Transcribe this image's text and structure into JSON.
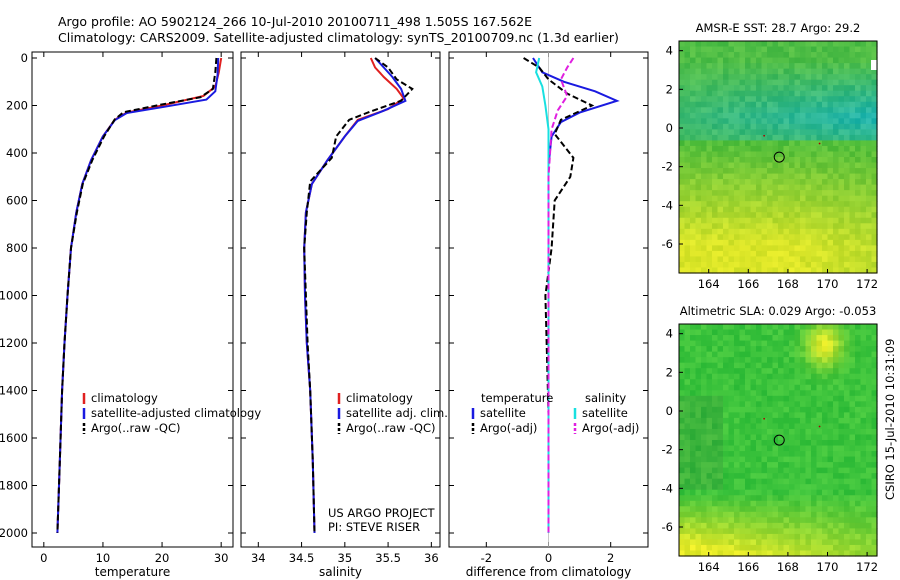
{
  "header": {
    "line1": "Argo profile: AO 5902124_266 10-Jul-2010 20100711_498 1.505S 167.562E",
    "line2": "Climatology: CARS2009. Satellite-adjusted climatology: synTS_20100709.nc (1.3d earlier)"
  },
  "side_label": "CSIRO 15-Jul-2010 10:31:09",
  "colors": {
    "climatology": "#e02020",
    "satellite": "#1a1ae0",
    "argo": "#000000",
    "sat_sal": "#18e0e0",
    "argo_sal": "#e020e0"
  },
  "chart_data": [
    {
      "type": "line",
      "id": "temperature",
      "xlabel": "temperature",
      "xlim": [
        -2,
        32
      ],
      "xticks": [
        "0",
        "10",
        "20",
        "30"
      ],
      "ylim": [
        0,
        2000
      ],
      "yticks": [
        "0",
        "200",
        "400",
        "600",
        "800",
        "1000",
        "1200",
        "1400",
        "1600",
        "1800",
        "2000"
      ],
      "legend": [
        "climatology",
        "satellite-adjusted climatology",
        "Argo(..raw -QC)"
      ],
      "series": [
        {
          "name": "climatology",
          "color": "#e02020",
          "dash": false,
          "x": [
            30.0,
            29.6,
            29.0,
            27.0,
            20.0,
            14.0,
            12.0,
            10.0,
            8.0,
            6.5,
            5.5,
            4.6,
            4.0,
            3.5,
            3.1,
            2.7,
            2.3
          ],
          "y": [
            0,
            60,
            120,
            160,
            200,
            230,
            260,
            330,
            430,
            530,
            650,
            800,
            1000,
            1200,
            1400,
            1700,
            2000
          ]
        },
        {
          "name": "satellite",
          "color": "#1a1ae0",
          "dash": false,
          "x": [
            29.5,
            29.4,
            29.0,
            27.5,
            20.5,
            14.0,
            12.0,
            10.0,
            8.0,
            6.5,
            5.5,
            4.6,
            4.0,
            3.5,
            3.1,
            2.7,
            2.3
          ],
          "y": [
            0,
            70,
            140,
            175,
            205,
            232,
            262,
            330,
            430,
            530,
            650,
            800,
            1000,
            1200,
            1400,
            1700,
            2000
          ]
        },
        {
          "name": "Argo",
          "color": "#000000",
          "dash": true,
          "x": [
            29.2,
            29.0,
            28.6,
            26.5,
            19.5,
            13.5,
            12.0,
            10.2,
            8.2,
            6.6,
            5.6,
            4.6,
            4.0,
            3.5,
            3.1,
            2.7,
            2.3
          ],
          "y": [
            0,
            60,
            130,
            165,
            198,
            228,
            258,
            330,
            430,
            530,
            650,
            800,
            1000,
            1200,
            1400,
            1700,
            2000
          ]
        }
      ]
    },
    {
      "type": "line",
      "id": "salinity",
      "xlabel": "salinity",
      "xlim": [
        33.8,
        36.1
      ],
      "xticks": [
        "34",
        "34.5",
        "35",
        "35.5",
        "36"
      ],
      "ylim": [
        0,
        2000
      ],
      "legend": [
        "climatology",
        "satellite adj. clim.",
        "Argo(..raw -QC)"
      ],
      "note_line1": "US ARGO PROJECT",
      "note_line2": "PI: STEVE RISER",
      "series": [
        {
          "name": "climatology",
          "color": "#e02020",
          "dash": false,
          "x": [
            35.3,
            35.35,
            35.45,
            35.6,
            35.68,
            35.5,
            35.15,
            35.0,
            34.8,
            34.62,
            34.55,
            34.53,
            34.54,
            34.56,
            34.6,
            34.63,
            34.65
          ],
          "y": [
            0,
            40,
            80,
            130,
            170,
            215,
            260,
            330,
            430,
            530,
            650,
            800,
            1000,
            1200,
            1400,
            1700,
            2000
          ]
        },
        {
          "name": "satellite",
          "color": "#1a1ae0",
          "dash": false,
          "x": [
            35.35,
            35.45,
            35.55,
            35.65,
            35.7,
            35.45,
            35.15,
            35.0,
            34.8,
            34.62,
            34.55,
            34.53,
            34.54,
            34.56,
            34.6,
            34.63,
            34.65
          ],
          "y": [
            0,
            40,
            80,
            130,
            180,
            222,
            265,
            330,
            430,
            530,
            650,
            800,
            1000,
            1200,
            1400,
            1700,
            2000
          ]
        },
        {
          "name": "Argo",
          "color": "#000000",
          "dash": true,
          "x": [
            35.35,
            35.5,
            35.6,
            35.78,
            35.65,
            35.3,
            35.05,
            34.9,
            34.85,
            34.6,
            34.56,
            34.53,
            34.55,
            34.57,
            34.6,
            34.63,
            34.65
          ],
          "y": [
            0,
            40,
            90,
            130,
            180,
            225,
            260,
            330,
            420,
            520,
            650,
            800,
            1000,
            1200,
            1400,
            1700,
            2000
          ]
        }
      ]
    },
    {
      "type": "line",
      "id": "difference",
      "xlabel": "difference from climatology",
      "xlim": [
        -3.2,
        3.2
      ],
      "xticks": [
        "-2",
        "0",
        "2"
      ],
      "ylim": [
        0,
        2000
      ],
      "legend_left_title": "temperature",
      "legend_left": [
        "satellite",
        "Argo(-adj)"
      ],
      "legend_right_title": "salinity",
      "legend_right": [
        "satellite",
        "Argo(-adj)"
      ],
      "series": [
        {
          "name": "temperature satellite",
          "color": "#1a1ae0",
          "dash": false,
          "x": [
            -0.5,
            -0.2,
            0.5,
            1.5,
            2.2,
            1.0,
            0.4,
            0.1,
            0.0,
            0.0,
            0.0,
            0.0,
            0.0
          ],
          "y": [
            0,
            60,
            100,
            140,
            180,
            230,
            270,
            330,
            450,
            600,
            800,
            1200,
            2000
          ]
        },
        {
          "name": "temperature Argo",
          "color": "#000000",
          "dash": true,
          "x": [
            -0.8,
            -0.3,
            0.0,
            0.6,
            1.4,
            0.4,
            0.2,
            0.8,
            0.7,
            0.2,
            0.1,
            -0.1,
            0.0,
            0.0
          ],
          "y": [
            0,
            40,
            90,
            150,
            200,
            260,
            320,
            420,
            500,
            600,
            800,
            1000,
            1500,
            2000
          ]
        },
        {
          "name": "salinity satellite",
          "color": "#18e0e0",
          "dash": false,
          "x": [
            -0.3,
            -0.4,
            -0.2,
            -0.1,
            0.0,
            0.0,
            0.0,
            0.0,
            0.0
          ],
          "y": [
            0,
            60,
            120,
            200,
            300,
            500,
            800,
            1300,
            2000
          ]
        },
        {
          "name": "salinity Argo",
          "color": "#e020e0",
          "dash": true,
          "x": [
            0.8,
            0.6,
            0.4,
            0.6,
            0.3,
            0.1,
            0.0,
            0.0
          ],
          "y": [
            0,
            40,
            90,
            160,
            220,
            300,
            500,
            2000
          ]
        }
      ]
    },
    {
      "type": "heatmap",
      "id": "sst-map",
      "title": "AMSR-E SST: 28.7  Argo: 29.2",
      "xticks": [
        "164",
        "166",
        "168",
        "170",
        "172"
      ],
      "yticks": [
        "4",
        "2",
        "0",
        "-2",
        "-4",
        "-6"
      ],
      "marker_lon": 167.562,
      "marker_lat": -1.505
    },
    {
      "type": "heatmap",
      "id": "sla-map",
      "title": "Altimetric SLA: 0.029  Argo: -0.053",
      "xticks": [
        "164",
        "166",
        "168",
        "170",
        "172"
      ],
      "yticks": [
        "4",
        "2",
        "0",
        "-2",
        "-4",
        "-6"
      ],
      "marker_lon": 167.562,
      "marker_lat": -1.505
    }
  ]
}
